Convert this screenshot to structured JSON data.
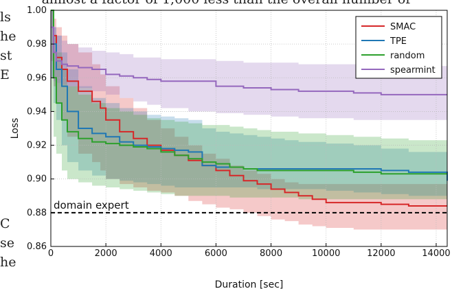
{
  "background_text": {
    "top_line": "almost a factor of 1,000 less than the overall number of",
    "left_fragments": [
      "ls",
      "he",
      "st",
      "E"
    ],
    "left_fragments_lower": [
      "C",
      "se",
      "he"
    ]
  },
  "chart_data": {
    "type": "line",
    "xlabel": "Duration [sec]",
    "ylabel": "Loss",
    "xlim": [
      0,
      14400
    ],
    "ylim": [
      0.86,
      1.0
    ],
    "xticks": [
      0,
      2000,
      4000,
      6000,
      8000,
      10000,
      12000,
      14000
    ],
    "yticks": [
      0.86,
      0.88,
      0.9,
      0.92,
      0.94,
      0.96,
      0.98,
      1.0
    ],
    "grid": true,
    "legend_placement": "top-right",
    "annotation": {
      "text": "domain expert",
      "y": 0.88
    },
    "series": [
      {
        "name": "SMAC",
        "color": "#d62728",
        "x": [
          0,
          100,
          200,
          400,
          600,
          1000,
          1500,
          1800,
          2000,
          2500,
          3000,
          3500,
          4000,
          4500,
          5000,
          5500,
          6000,
          6500,
          7000,
          7500,
          8000,
          8500,
          9000,
          9500,
          10000,
          11000,
          12000,
          13000,
          14400
        ],
        "y": [
          1.0,
          0.985,
          0.972,
          0.965,
          0.958,
          0.952,
          0.946,
          0.942,
          0.935,
          0.928,
          0.924,
          0.92,
          0.917,
          0.914,
          0.911,
          0.908,
          0.905,
          0.902,
          0.899,
          0.897,
          0.894,
          0.892,
          0.89,
          0.888,
          0.886,
          0.886,
          0.885,
          0.884,
          0.884
        ],
        "lower": [
          1.0,
          0.97,
          0.955,
          0.945,
          0.935,
          0.925,
          0.915,
          0.91,
          0.905,
          0.9,
          0.897,
          0.895,
          0.893,
          0.892,
          0.89,
          0.887,
          0.885,
          0.883,
          0.882,
          0.88,
          0.878,
          0.876,
          0.875,
          0.873,
          0.872,
          0.871,
          0.87,
          0.87,
          0.87
        ],
        "upper": [
          1.0,
          0.995,
          0.99,
          0.985,
          0.98,
          0.975,
          0.968,
          0.962,
          0.955,
          0.948,
          0.942,
          0.935,
          0.93,
          0.925,
          0.92,
          0.915,
          0.912,
          0.908,
          0.905,
          0.903,
          0.9,
          0.898,
          0.897,
          0.897,
          0.897,
          0.897,
          0.897,
          0.897,
          0.897
        ]
      },
      {
        "name": "TPE",
        "color": "#1f77b4",
        "x": [
          0,
          100,
          200,
          400,
          600,
          1000,
          1500,
          2000,
          2500,
          3000,
          3500,
          4000,
          4500,
          5000,
          5500,
          6000,
          6500,
          7000,
          7500,
          8000,
          8500,
          9000,
          10000,
          11000,
          12000,
          13000,
          14400
        ],
        "y": [
          1.0,
          0.98,
          0.965,
          0.955,
          0.94,
          0.93,
          0.927,
          0.925,
          0.922,
          0.92,
          0.919,
          0.918,
          0.917,
          0.916,
          0.908,
          0.907,
          0.907,
          0.906,
          0.906,
          0.906,
          0.906,
          0.906,
          0.906,
          0.906,
          0.905,
          0.904,
          0.899
        ],
        "lower": [
          1.0,
          0.96,
          0.945,
          0.935,
          0.92,
          0.91,
          0.905,
          0.902,
          0.9,
          0.899,
          0.898,
          0.897,
          0.896,
          0.895,
          0.895,
          0.895,
          0.895,
          0.895,
          0.895,
          0.894,
          0.894,
          0.894,
          0.894,
          0.893,
          0.892,
          0.891,
          0.89
        ],
        "upper": [
          1.0,
          0.99,
          0.985,
          0.975,
          0.965,
          0.955,
          0.948,
          0.945,
          0.942,
          0.94,
          0.938,
          0.937,
          0.936,
          0.935,
          0.93,
          0.928,
          0.927,
          0.926,
          0.925,
          0.924,
          0.923,
          0.922,
          0.921,
          0.92,
          0.918,
          0.916,
          0.915
        ]
      },
      {
        "name": "random",
        "color": "#2ca02c",
        "x": [
          0,
          100,
          200,
          400,
          600,
          1000,
          1500,
          2000,
          2500,
          3000,
          3500,
          4000,
          4500,
          5000,
          5500,
          6000,
          6500,
          7000,
          7500,
          8000,
          9000,
          10000,
          11000,
          12000,
          13000,
          14400
        ],
        "y": [
          1.0,
          0.96,
          0.945,
          0.935,
          0.928,
          0.924,
          0.922,
          0.921,
          0.92,
          0.919,
          0.918,
          0.916,
          0.914,
          0.912,
          0.91,
          0.909,
          0.907,
          0.906,
          0.905,
          0.905,
          0.905,
          0.905,
          0.904,
          0.903,
          0.903,
          0.903
        ],
        "lower": [
          1.0,
          0.94,
          0.925,
          0.915,
          0.905,
          0.9,
          0.898,
          0.896,
          0.895,
          0.894,
          0.893,
          0.892,
          0.891,
          0.89,
          0.89,
          0.89,
          0.89,
          0.889,
          0.889,
          0.889,
          0.889,
          0.888,
          0.888,
          0.888,
          0.888,
          0.888
        ],
        "upper": [
          1.0,
          0.985,
          0.975,
          0.965,
          0.955,
          0.95,
          0.945,
          0.942,
          0.94,
          0.938,
          0.936,
          0.935,
          0.934,
          0.933,
          0.932,
          0.932,
          0.931,
          0.93,
          0.929,
          0.928,
          0.927,
          0.926,
          0.925,
          0.924,
          0.923,
          0.922
        ]
      },
      {
        "name": "spearmint",
        "color": "#9467bd",
        "x": [
          0,
          100,
          200,
          400,
          600,
          1000,
          1500,
          2000,
          2500,
          3000,
          3500,
          4000,
          5000,
          6000,
          7000,
          8000,
          9000,
          10000,
          11000,
          12000,
          13000,
          14400
        ],
        "y": [
          0.99,
          0.975,
          0.97,
          0.968,
          0.967,
          0.966,
          0.965,
          0.962,
          0.961,
          0.96,
          0.959,
          0.958,
          0.958,
          0.955,
          0.954,
          0.953,
          0.952,
          0.952,
          0.951,
          0.95,
          0.95,
          0.95
        ],
        "lower": [
          0.975,
          0.96,
          0.958,
          0.957,
          0.956,
          0.955,
          0.954,
          0.952,
          0.95,
          0.948,
          0.946,
          0.944,
          0.942,
          0.94,
          0.939,
          0.938,
          0.937,
          0.936,
          0.936,
          0.935,
          0.935,
          0.935
        ],
        "upper": [
          1.0,
          0.99,
          0.985,
          0.982,
          0.98,
          0.978,
          0.976,
          0.975,
          0.974,
          0.972,
          0.972,
          0.971,
          0.971,
          0.97,
          0.969,
          0.969,
          0.968,
          0.968,
          0.968,
          0.968,
          0.967,
          0.966
        ]
      }
    ]
  }
}
